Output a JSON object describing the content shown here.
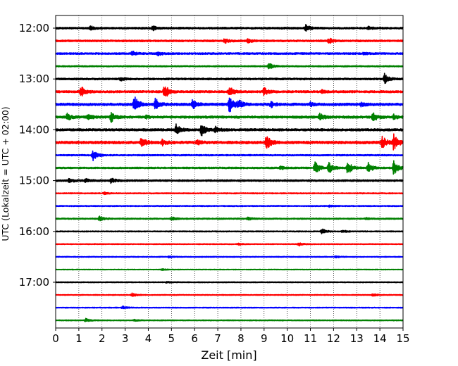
{
  "chart_data": {
    "type": "line",
    "title": "",
    "xlabel": "Zeit  [min]",
    "ylabel": "UTC (Lokalzeit = UTC + 02:00)",
    "xlim": [
      0,
      15
    ],
    "x_ticks": [
      "0",
      "1",
      "2",
      "3",
      "4",
      "5",
      "6",
      "7",
      "8",
      "9",
      "10",
      "11",
      "12",
      "13",
      "14",
      "15"
    ],
    "y_ticks": [
      {
        "label": "12:00",
        "row": 0
      },
      {
        "label": "13:00",
        "row": 4
      },
      {
        "label": "14:00",
        "row": 8
      },
      {
        "label": "15:00",
        "row": 12
      },
      {
        "label": "16:00",
        "row": 16
      },
      {
        "label": "17:00",
        "row": 20
      }
    ],
    "grid": "vertical dotted",
    "trace_colors": [
      "#000000",
      "#ff0000",
      "#0000ff",
      "#008000"
    ],
    "row_interval_min": 15,
    "series": [
      {
        "start": "12:00",
        "noise": 0.1,
        "events": [
          [
            1.5,
            0.2
          ],
          [
            4.2,
            0.25
          ],
          [
            10.8,
            0.35
          ],
          [
            13.5,
            0.15
          ]
        ]
      },
      {
        "start": "12:15",
        "noise": 0.1,
        "events": [
          [
            7.3,
            0.25
          ],
          [
            8.3,
            0.2
          ],
          [
            11.8,
            0.3
          ]
        ]
      },
      {
        "start": "12:30",
        "noise": 0.1,
        "events": [
          [
            3.3,
            0.3
          ],
          [
            4.4,
            0.25
          ],
          [
            13.3,
            0.12
          ]
        ]
      },
      {
        "start": "12:45",
        "noise": 0.07,
        "events": [
          [
            9.2,
            0.4
          ]
        ]
      },
      {
        "start": "13:00",
        "noise": 0.1,
        "events": [
          [
            2.8,
            0.2
          ],
          [
            14.2,
            0.6
          ]
        ]
      },
      {
        "start": "13:15",
        "noise": 0.12,
        "events": [
          [
            1.1,
            0.6
          ],
          [
            4.7,
            0.85
          ],
          [
            7.5,
            0.6
          ],
          [
            9.0,
            0.45
          ],
          [
            11.5,
            0.15
          ]
        ]
      },
      {
        "start": "13:30",
        "noise": 0.14,
        "events": [
          [
            3.4,
            0.9
          ],
          [
            4.3,
            0.75
          ],
          [
            5.9,
            0.5
          ],
          [
            7.5,
            1.0
          ],
          [
            7.9,
            0.4
          ],
          [
            9.3,
            0.3
          ],
          [
            11.0,
            0.2
          ],
          [
            13.2,
            0.2
          ]
        ]
      },
      {
        "start": "13:45",
        "noise": 0.13,
        "events": [
          [
            0.5,
            0.35
          ],
          [
            1.4,
            0.3
          ],
          [
            2.4,
            0.55
          ],
          [
            3.9,
            0.2
          ],
          [
            11.4,
            0.45
          ],
          [
            13.7,
            0.55
          ],
          [
            14.6,
            0.25
          ]
        ]
      },
      {
        "start": "14:00",
        "noise": 0.13,
        "events": [
          [
            5.2,
            0.6
          ],
          [
            6.3,
            0.65
          ],
          [
            6.9,
            0.3
          ]
        ]
      },
      {
        "start": "14:15",
        "noise": 0.15,
        "events": [
          [
            3.7,
            0.6
          ],
          [
            4.6,
            0.3
          ],
          [
            6.1,
            0.25
          ],
          [
            9.1,
            0.8
          ],
          [
            14.1,
            0.7
          ],
          [
            14.6,
            0.9
          ]
        ]
      },
      {
        "start": "14:30",
        "noise": 0.08,
        "events": [
          [
            1.6,
            0.7
          ]
        ]
      },
      {
        "start": "14:45",
        "noise": 0.09,
        "events": [
          [
            9.7,
            0.2
          ],
          [
            11.2,
            0.8
          ],
          [
            11.8,
            0.75
          ],
          [
            12.6,
            0.85
          ],
          [
            13.5,
            0.6
          ],
          [
            14.6,
            0.9
          ]
        ]
      },
      {
        "start": "15:00",
        "noise": 0.1,
        "events": [
          [
            0.6,
            0.25
          ],
          [
            1.3,
            0.2
          ],
          [
            2.4,
            0.3
          ]
        ]
      },
      {
        "start": "15:15",
        "noise": 0.06,
        "events": [
          [
            2.1,
            0.12
          ]
        ]
      },
      {
        "start": "15:30",
        "noise": 0.06,
        "events": [
          [
            11.8,
            0.1
          ]
        ]
      },
      {
        "start": "15:45",
        "noise": 0.07,
        "events": [
          [
            1.9,
            0.3
          ],
          [
            5.0,
            0.2
          ],
          [
            8.3,
            0.15
          ],
          [
            13.4,
            0.12
          ]
        ]
      },
      {
        "start": "16:00",
        "noise": 0.06,
        "events": [
          [
            11.5,
            0.35
          ],
          [
            12.4,
            0.12
          ]
        ]
      },
      {
        "start": "16:15",
        "noise": 0.05,
        "events": [
          [
            7.9,
            0.1
          ],
          [
            10.5,
            0.2
          ]
        ]
      },
      {
        "start": "16:30",
        "noise": 0.05,
        "events": [
          [
            4.9,
            0.1
          ],
          [
            12.1,
            0.1
          ]
        ]
      },
      {
        "start": "16:45",
        "noise": 0.04,
        "events": [
          [
            4.6,
            0.08
          ]
        ]
      },
      {
        "start": "17:00",
        "noise": 0.05,
        "events": [
          [
            4.8,
            0.1
          ]
        ]
      },
      {
        "start": "17:15",
        "noise": 0.05,
        "events": [
          [
            3.3,
            0.2
          ],
          [
            13.7,
            0.15
          ]
        ]
      },
      {
        "start": "17:30",
        "noise": 0.05,
        "events": [
          [
            2.9,
            0.15
          ]
        ]
      },
      {
        "start": "17:45",
        "noise": 0.05,
        "events": [
          [
            1.3,
            0.2
          ],
          [
            3.4,
            0.08
          ]
        ]
      }
    ]
  }
}
